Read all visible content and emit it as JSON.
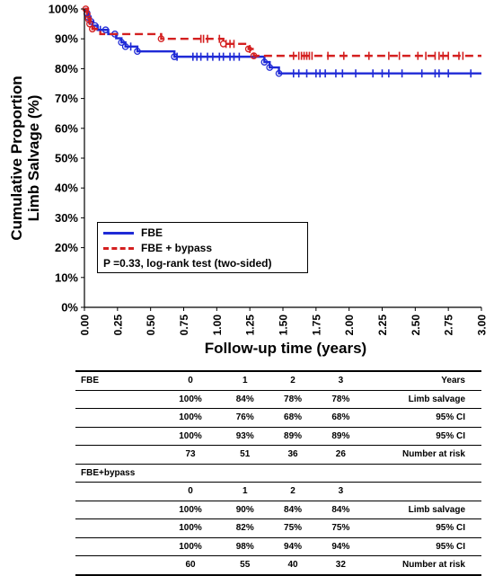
{
  "chart_data": {
    "type": "line",
    "title": "",
    "xlabel": "Follow-up time (years)",
    "ylabel_lines": [
      "Cumulative Proportion",
      "Limb Salvage (%)"
    ],
    "xlim": [
      0,
      3
    ],
    "ylim": [
      0,
      100
    ],
    "x_ticks": [
      "0.00",
      "0.25",
      "0.50",
      "0.75",
      "1.00",
      "1.25",
      "1.50",
      "1.75",
      "2.00",
      "2.25",
      "2.50",
      "2.75",
      "3.00"
    ],
    "y_ticks": [
      "0%",
      "10%",
      "20%",
      "30%",
      "40%",
      "50%",
      "60%",
      "70%",
      "80%",
      "90%",
      "100%"
    ],
    "legend_position": "lower-left",
    "legend_note": "P =0.33, log-rank test (two-sided)",
    "series": [
      {
        "name": "FBE",
        "color": "#1f2ad6",
        "style": "solid",
        "steps": [
          [
            0,
            100
          ],
          [
            0.02,
            98.6
          ],
          [
            0.03,
            97.2
          ],
          [
            0.04,
            95.8
          ],
          [
            0.06,
            94.4
          ],
          [
            0.1,
            93.0
          ],
          [
            0.12,
            93.0
          ],
          [
            0.18,
            91.6
          ],
          [
            0.24,
            90.2
          ],
          [
            0.28,
            88.8
          ],
          [
            0.31,
            87.4
          ],
          [
            0.4,
            85.8
          ],
          [
            0.68,
            84.0
          ],
          [
            1.36,
            82.2
          ],
          [
            1.4,
            80.4
          ],
          [
            1.47,
            78.4
          ],
          [
            3.0,
            78.4
          ]
        ],
        "events": [
          0.02,
          0.03,
          0.05,
          0.08,
          0.16,
          0.23,
          0.28,
          0.31,
          0.4,
          0.68,
          1.36,
          1.4,
          1.47
        ],
        "censored": [
          0.12,
          0.35,
          0.7,
          0.82,
          0.85,
          0.88,
          0.93,
          0.97,
          1.02,
          1.05,
          1.1,
          1.13,
          1.17,
          1.58,
          1.62,
          1.68,
          1.75,
          1.78,
          1.82,
          1.9,
          1.95,
          2.05,
          2.18,
          2.25,
          2.3,
          2.4,
          2.55,
          2.65,
          2.68,
          2.75,
          2.92
        ]
      },
      {
        "name": "FBE + bypass",
        "color": "#d42020",
        "style": "dashed",
        "steps": [
          [
            0,
            100
          ],
          [
            0.02,
            98.3
          ],
          [
            0.03,
            96.6
          ],
          [
            0.04,
            95.0
          ],
          [
            0.06,
            93.3
          ],
          [
            0.12,
            91.6
          ],
          [
            0.58,
            90.0
          ],
          [
            1.05,
            88.3
          ],
          [
            1.24,
            86.6
          ],
          [
            1.28,
            84.3
          ],
          [
            3.0,
            84.3
          ]
        ],
        "events": [
          0.01,
          0.02,
          0.03,
          0.04,
          0.06,
          0.58,
          1.05,
          1.24,
          1.28
        ],
        "censored": [
          0.88,
          0.9,
          0.93,
          1.02,
          1.07,
          1.1,
          1.13,
          1.25,
          1.58,
          1.62,
          1.64,
          1.66,
          1.68,
          1.7,
          1.72,
          1.84,
          1.96,
          2.15,
          2.3,
          2.38,
          2.52,
          2.58,
          2.65,
          2.68,
          2.71,
          2.75,
          2.83,
          2.86
        ]
      }
    ]
  },
  "risk_table": {
    "fbe": {
      "label": "FBE",
      "header": [
        "0",
        "1",
        "2",
        "3",
        "Years"
      ],
      "rows": [
        [
          "100%",
          "84%",
          "78%",
          "78%",
          "Limb salvage"
        ],
        [
          "100%",
          "76%",
          "68%",
          "68%",
          "95% CI"
        ],
        [
          "100%",
          "93%",
          "89%",
          "89%",
          "95% CI"
        ],
        [
          "73",
          "51",
          "36",
          "26",
          "Number at risk"
        ]
      ]
    },
    "bypass": {
      "label": "FBE+bypass",
      "header": [
        "0",
        "1",
        "2",
        "3",
        ""
      ],
      "rows": [
        [
          "100%",
          "90%",
          "84%",
          "84%",
          "Limb salvage"
        ],
        [
          "100%",
          "82%",
          "75%",
          "75%",
          "95% CI"
        ],
        [
          "100%",
          "98%",
          "94%",
          "94%",
          "95% CI"
        ],
        [
          "60",
          "55",
          "40",
          "32",
          "Number at risk"
        ]
      ]
    }
  }
}
